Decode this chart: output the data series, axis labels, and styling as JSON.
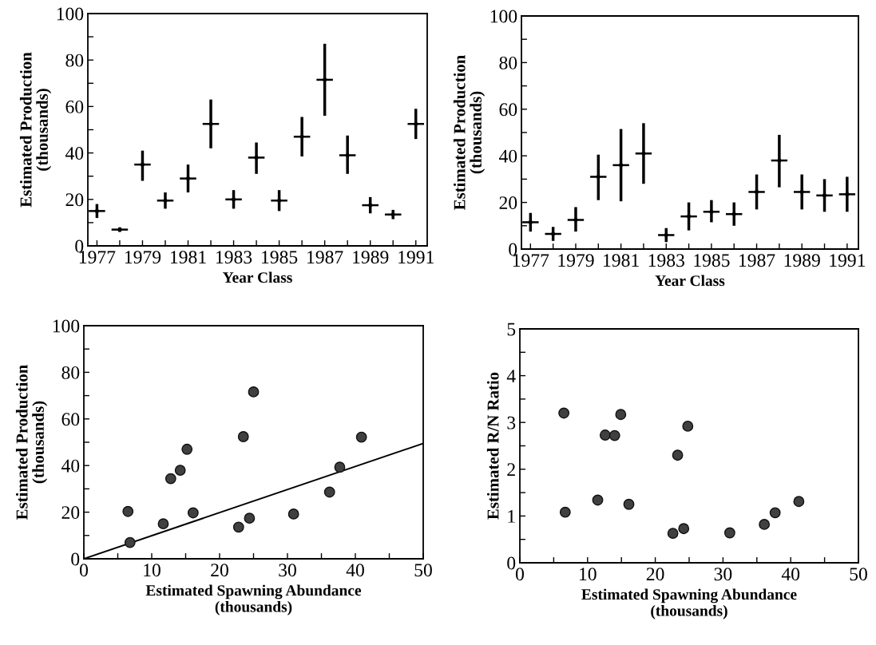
{
  "chart_data": [
    {
      "type": "scatter",
      "xlabel": "Year Class",
      "ylabel": "Estimated Production\n(thousands)",
      "x": [
        1977,
        1978,
        1979,
        1980,
        1981,
        1982,
        1983,
        1984,
        1985,
        1986,
        1987,
        1988,
        1989,
        1990,
        1991
      ],
      "values": [
        15,
        7,
        35,
        19.5,
        29,
        52.5,
        20,
        38,
        19.5,
        47,
        71.5,
        39,
        17.5,
        13.5,
        52.5
      ],
      "marker": "circle",
      "xerrors": [
        0.36,
        0.36,
        0.36,
        0.36,
        0.36,
        0.36,
        0.36,
        0.36,
        0.36,
        0.36,
        0.36,
        0.36,
        0.36,
        0.36,
        0.36
      ],
      "errors": [
        [
          12,
          18
        ],
        [
          6,
          8
        ],
        [
          28,
          41
        ],
        [
          16,
          23
        ],
        [
          23,
          35
        ],
        [
          42,
          63
        ],
        [
          16,
          24
        ],
        [
          31,
          44.5
        ],
        [
          15,
          24
        ],
        [
          38.5,
          55.5
        ],
        [
          56,
          87
        ],
        [
          31,
          47.5
        ],
        [
          14,
          21
        ],
        [
          11.5,
          15.5
        ],
        [
          46,
          59
        ]
      ],
      "color": "#000000",
      "xlim": [
        1976.6,
        1991.5
      ],
      "ylim": [
        0,
        100
      ],
      "xticks": [
        1977,
        {
          "value": 1978,
          "label": null
        },
        1979,
        {
          "value": 1980,
          "label": null
        },
        1981,
        {
          "value": 1982,
          "label": null
        },
        1983,
        {
          "value": 1984,
          "label": null
        },
        1985,
        {
          "value": 1986,
          "label": null
        },
        1987,
        {
          "value": 1988,
          "label": null
        },
        1989,
        {
          "value": 1990,
          "label": null
        },
        1991
      ],
      "yticks": [
        0,
        {
          "value": 10,
          "label": null
        },
        20,
        {
          "value": 30,
          "label": null
        },
        40,
        {
          "value": 50,
          "label": null
        },
        60,
        {
          "value": 70,
          "label": null
        },
        80,
        {
          "value": 90,
          "label": null
        },
        100
      ]
    },
    {
      "type": "scatter",
      "xlabel": "Year Class",
      "ylabel": "Estimated Production\n(thousands)",
      "x": [
        1977,
        1978,
        1979,
        1980,
        1981,
        1982,
        1983,
        1984,
        1985,
        1986,
        1987,
        1988,
        1989,
        1990,
        1991
      ],
      "values": [
        11.5,
        6.5,
        12.5,
        31,
        36,
        41,
        6,
        14,
        16,
        15,
        24.5,
        38,
        24.5,
        23,
        23.5
      ],
      "marker": "circle",
      "xerrors": [
        0.36,
        0.36,
        0.36,
        0.36,
        0.36,
        0.36,
        0.36,
        0.36,
        0.36,
        0.36,
        0.36,
        0.36,
        0.36,
        0.36,
        0.36
      ],
      "errors": [
        [
          7.5,
          15.5
        ],
        [
          3.5,
          9.5
        ],
        [
          7.5,
          18
        ],
        [
          21,
          40.5
        ],
        [
          20.5,
          51.5
        ],
        [
          28,
          54
        ],
        [
          3,
          9
        ],
        [
          8,
          20
        ],
        [
          11.5,
          21
        ],
        [
          10,
          20
        ],
        [
          17,
          32
        ],
        [
          26.5,
          49
        ],
        [
          17,
          32
        ],
        [
          16,
          30
        ],
        [
          16,
          31
        ]
      ],
      "color": "#000000",
      "xlim": [
        1976.6,
        1991.5
      ],
      "ylim": [
        0,
        100
      ],
      "xticks": [
        1977,
        {
          "value": 1978,
          "label": null
        },
        1979,
        {
          "value": 1980,
          "label": null
        },
        1981,
        {
          "value": 1982,
          "label": null
        },
        1983,
        {
          "value": 1984,
          "label": null
        },
        1985,
        {
          "value": 1986,
          "label": null
        },
        1987,
        {
          "value": 1988,
          "label": null
        },
        1989,
        {
          "value": 1990,
          "label": null
        },
        1991
      ],
      "yticks": [
        0,
        {
          "value": 10,
          "label": null
        },
        20,
        {
          "value": 30,
          "label": null
        },
        40,
        {
          "value": 50,
          "label": null
        },
        60,
        {
          "value": 70,
          "label": null
        },
        80,
        {
          "value": 90,
          "label": null
        },
        100
      ]
    },
    {
      "type": "scatter",
      "xlabel": "Estimated Spawning Abundance\n(thousands)",
      "ylabel": "Estimated Production\n(thousands)",
      "series": [
        {
          "type": "scatter",
          "marker": "circle",
          "color": "#404040",
          "x": [
            6.5,
            6.8,
            11.7,
            12.8,
            14.2,
            15.2,
            16.1,
            22.8,
            23.5,
            24.4,
            25.0,
            30.9,
            36.2,
            37.7,
            40.9
          ],
          "values": [
            20.3,
            7,
            15,
            34.4,
            38,
            47,
            19.7,
            13.6,
            52.4,
            17.4,
            71.6,
            19.2,
            28.6,
            39.3,
            52.2
          ]
        },
        {
          "type": "line",
          "color": "#000000",
          "x": [
            0,
            50
          ],
          "values": [
            0,
            49.5
          ]
        }
      ],
      "xlim": [
        0,
        50
      ],
      "ylim": [
        0,
        100
      ],
      "xticks": [
        0,
        {
          "value": 5,
          "label": null
        },
        10,
        {
          "value": 15,
          "label": null
        },
        20,
        {
          "value": 25,
          "label": null
        },
        30,
        {
          "value": 35,
          "label": null
        },
        40,
        {
          "value": 45,
          "label": null
        },
        50
      ],
      "yticks": [
        0,
        {
          "value": 10,
          "label": null
        },
        20,
        {
          "value": 30,
          "label": null
        },
        40,
        {
          "value": 50,
          "label": null
        },
        60,
        {
          "value": 70,
          "label": null
        },
        80,
        {
          "value": 90,
          "label": null
        },
        100
      ]
    },
    {
      "type": "scatter",
      "xlabel": "Estimated Spawning Abundance\n(thousands)",
      "ylabel": "Estimated R/N Ratio",
      "series": [
        {
          "type": "scatter",
          "marker": "circle",
          "color": "#404040",
          "x": [
            6.5,
            6.7,
            11.5,
            12.6,
            14.0,
            14.9,
            16.1,
            22.6,
            23.3,
            24.2,
            24.8,
            31.0,
            36.1,
            37.7,
            41.2
          ],
          "values": [
            3.2,
            1.08,
            1.34,
            2.73,
            2.72,
            3.17,
            1.25,
            0.63,
            2.3,
            0.73,
            2.92,
            0.64,
            0.82,
            1.07,
            1.31
          ]
        }
      ],
      "xlim": [
        0,
        50
      ],
      "ylim": [
        0,
        5
      ],
      "xticks": [
        0,
        {
          "value": 5,
          "label": null
        },
        10,
        {
          "value": 15,
          "label": null
        },
        20,
        {
          "value": 25,
          "label": null
        },
        30,
        {
          "value": 35,
          "label": null
        },
        40,
        {
          "value": 45,
          "label": null
        },
        50
      ],
      "yticks": [
        0,
        {
          "value": 0.5,
          "label": null
        },
        1,
        {
          "value": 1.5,
          "label": null
        },
        2,
        {
          "value": 2.5,
          "label": null
        },
        3,
        {
          "value": 3.5,
          "label": null
        },
        4,
        {
          "value": 4.5,
          "label": null
        },
        5
      ]
    }
  ]
}
